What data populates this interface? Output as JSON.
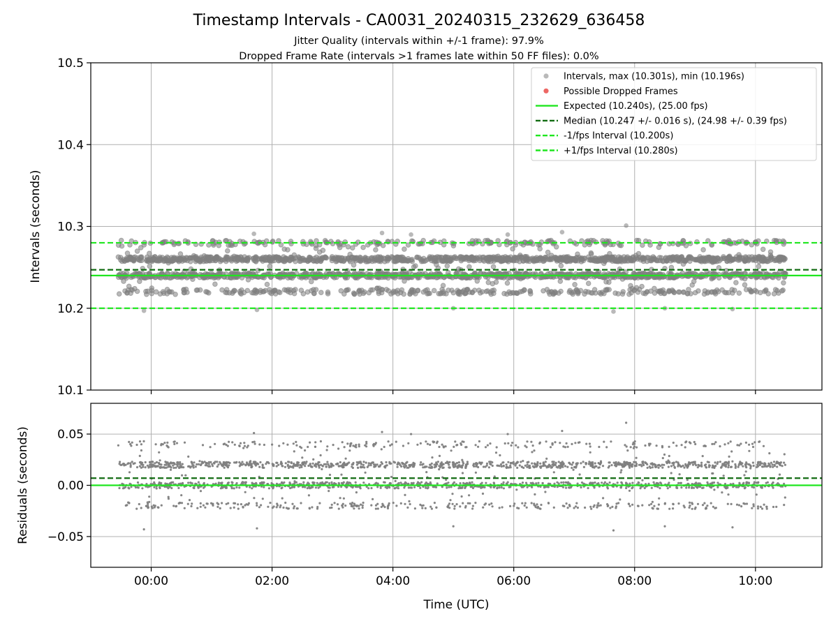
{
  "figure": {
    "title": "Timestamp Intervals - CA0031_20240315_232629_636458",
    "subtitle_line1": "Jitter Quality (intervals within +/-1 frame): 97.9%",
    "subtitle_line2": "Dropped Frame Rate (intervals >1 frames late within 50 FF files): 0.0%"
  },
  "colors": {
    "scatter": "#808080",
    "dropped": "#e8413d",
    "expected": "#1ee61e",
    "median": "#116b11",
    "bounds": "#1ee61e",
    "grid": "#b0b0b0"
  },
  "chart_data": [
    {
      "type": "scatter",
      "id": "intervals",
      "xlabel": "",
      "ylabel": "Intervals (seconds)",
      "xlim": [
        -1.0,
        11.1
      ],
      "ylim": [
        10.1,
        10.5
      ],
      "y_ticks": [
        10.1,
        10.2,
        10.3,
        10.4,
        10.5
      ],
      "y_tick_labels": [
        "10.1",
        "10.2",
        "10.3",
        "10.4",
        "10.5"
      ],
      "x_ticks": [
        0,
        2,
        4,
        6,
        8,
        10
      ],
      "x_tick_labels": [],
      "grid": true,
      "legend_position": "top-right",
      "legend": [
        {
          "label": "Intervals, max (10.301s), min (10.196s)",
          "kind": "dot",
          "color": "#808080",
          "alpha": 0.55
        },
        {
          "label": "Possible Dropped Frames",
          "kind": "dot",
          "color": "#e8413d",
          "alpha": 0.8
        },
        {
          "label": "Expected (10.240s), (25.00 fps)",
          "kind": "solid",
          "color": "#1ee61e"
        },
        {
          "label": "Median (10.247 +/- 0.016 s), (24.98 +/- 0.39 fps)",
          "kind": "dashed",
          "color": "#116b11"
        },
        {
          "label": "-1/fps Interval (10.200s)",
          "kind": "dashed",
          "color": "#1ee61e"
        },
        {
          "label": "+1/fps Interval (10.280s)",
          "kind": "dashed",
          "color": "#1ee61e"
        }
      ],
      "reference_lines": [
        {
          "name": "expected",
          "y": 10.24,
          "style": "solid",
          "color": "#1ee61e"
        },
        {
          "name": "median",
          "y": 10.247,
          "style": "dashed",
          "color": "#116b11"
        },
        {
          "name": "minus-1-fps",
          "y": 10.2,
          "style": "dashed",
          "color": "#1ee61e"
        },
        {
          "name": "plus-1-fps",
          "y": 10.28,
          "style": "dashed",
          "color": "#1ee61e"
        }
      ],
      "series_summary": {
        "name": "Intervals",
        "x_range_hours": [
          -0.55,
          10.5
        ],
        "y_levels": [
          10.22,
          10.24,
          10.26,
          10.28
        ],
        "y_max": 10.301,
        "y_min": 10.196,
        "notable_points": [
          {
            "x": 7.86,
            "y": 10.301
          },
          {
            "x": 7.65,
            "y": 10.196
          },
          {
            "x": -0.12,
            "y": 10.197
          },
          {
            "x": 1.7,
            "y": 10.291
          },
          {
            "x": 3.82,
            "y": 10.292
          },
          {
            "x": 6.8,
            "y": 10.293
          },
          {
            "x": 4.3,
            "y": 10.29
          },
          {
            "x": 5.9,
            "y": 10.29
          },
          {
            "x": 9.62,
            "y": 10.199
          },
          {
            "x": 1.75,
            "y": 10.198
          },
          {
            "x": 5.0,
            "y": 10.2
          },
          {
            "x": 8.5,
            "y": 10.2
          }
        ]
      },
      "dropped_frames": []
    },
    {
      "type": "scatter",
      "id": "residuals",
      "xlabel": "Time (UTC)",
      "ylabel": "Residuals (seconds)",
      "xlim": [
        -1.0,
        11.1
      ],
      "ylim": [
        -0.08,
        0.08
      ],
      "y_ticks": [
        -0.05,
        0.0,
        0.05
      ],
      "y_tick_labels": [
        "−0.05",
        "0.00",
        "0.05"
      ],
      "x_ticks": [
        0,
        2,
        4,
        6,
        8,
        10
      ],
      "x_tick_labels": [
        "00:00",
        "02:00",
        "04:00",
        "06:00",
        "08:00",
        "10:00"
      ],
      "grid": true,
      "reference_lines": [
        {
          "name": "zero",
          "y": 0.0,
          "style": "solid",
          "color": "#1ee61e"
        },
        {
          "name": "median-offset",
          "y": 0.007,
          "style": "dashed",
          "color": "#116b11"
        }
      ],
      "series_summary": {
        "name": "Residuals",
        "x_range_hours": [
          -0.55,
          10.5
        ],
        "y_levels": [
          -0.02,
          0.0,
          0.02,
          0.04
        ],
        "y_max": 0.061,
        "y_min": -0.044,
        "notable_points": [
          {
            "x": 7.86,
            "y": 0.061
          },
          {
            "x": 7.65,
            "y": -0.044
          },
          {
            "x": -0.12,
            "y": -0.043
          },
          {
            "x": 1.7,
            "y": 0.051
          },
          {
            "x": 3.82,
            "y": 0.052
          },
          {
            "x": 6.8,
            "y": 0.053
          },
          {
            "x": 4.3,
            "y": 0.05
          },
          {
            "x": 5.9,
            "y": 0.05
          },
          {
            "x": 9.62,
            "y": -0.041
          },
          {
            "x": 1.75,
            "y": -0.042
          },
          {
            "x": 5.0,
            "y": -0.04
          },
          {
            "x": 8.5,
            "y": -0.04
          }
        ]
      }
    }
  ]
}
